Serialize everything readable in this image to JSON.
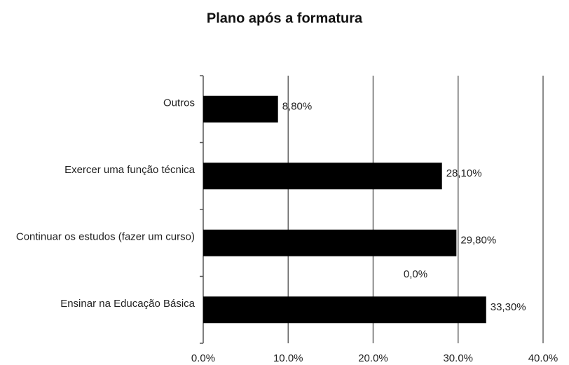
{
  "chart_data": {
    "type": "barh",
    "title": "Plano após a formatura",
    "categories": [
      "Outros",
      "Exercer uma função técnica",
      "Continuar os estudos (fazer um curso)",
      "Ensinar na Educação Básica"
    ],
    "values": [
      8.8,
      28.1,
      29.8,
      33.3
    ],
    "value_labels": [
      "8,80%",
      "28,10%",
      "29,80%",
      "33,30%"
    ],
    "color": "#000000",
    "xlim": [
      0,
      40
    ],
    "xticks": [
      {
        "value": 0,
        "label": "0.0%"
      },
      {
        "value": 10,
        "label": "10.0%"
      },
      {
        "value": 20,
        "label": "20.0%"
      },
      {
        "value": 30,
        "label": "30.0%"
      },
      {
        "value": 40,
        "label": "40.0%"
      }
    ],
    "grid": true,
    "annotations": [
      "0,0%"
    ]
  }
}
